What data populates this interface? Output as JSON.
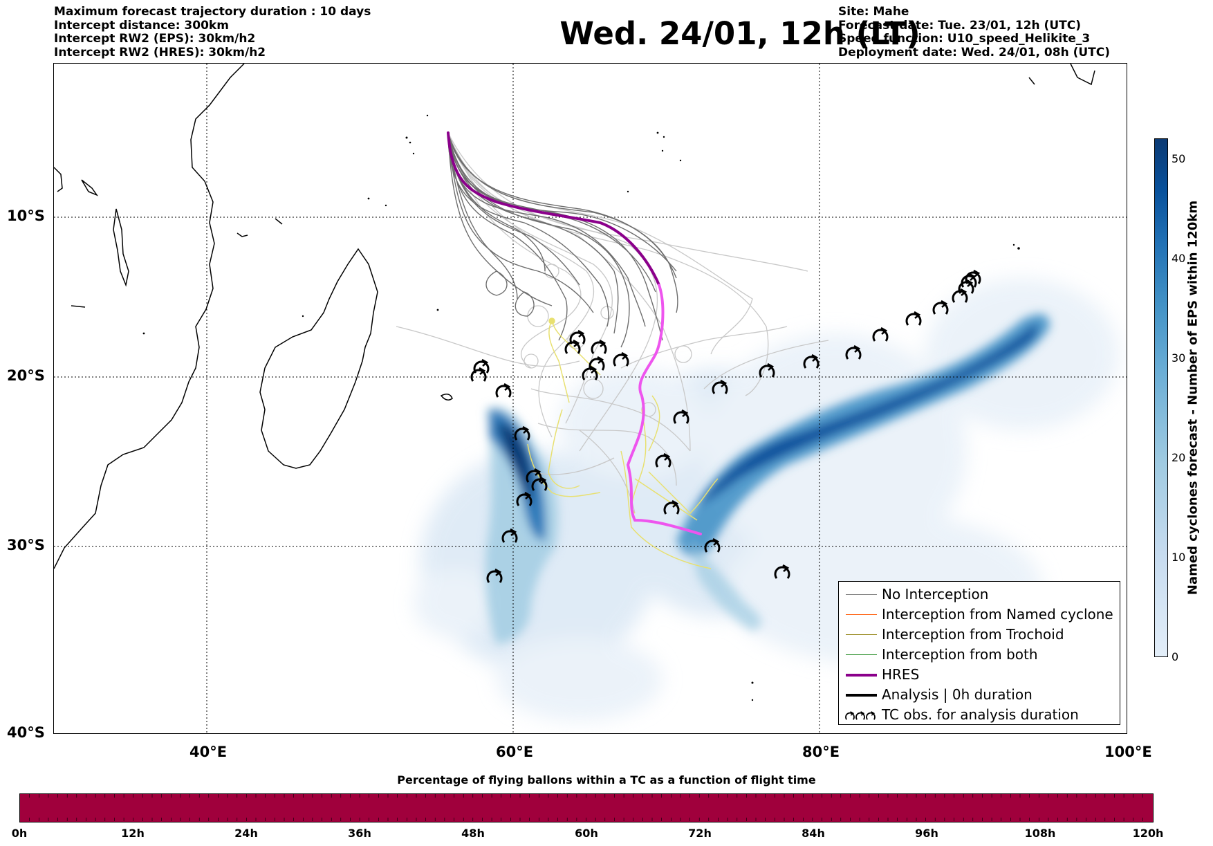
{
  "header": {
    "left_lines": [
      "Maximum forecast trajectory duration : 10 days",
      "Intercept distance: 300km",
      "Intercept RW2 (EPS):  30km/h2",
      "Intercept RW2 (HRES): 30km/h2"
    ],
    "title": "Wed. 24/01, 12h (LT)",
    "right_lines": [
      "Site: Mahe",
      "Forecast date: Tue. 23/01, 12h (UTC)",
      "Speed function: U10_speed_Helikite_3",
      "Deployment date: Wed. 24/01, 08h (UTC)"
    ]
  },
  "map": {
    "lat_labels": [
      "10°S",
      "20°S",
      "30°S",
      "40°S"
    ],
    "lon_labels": [
      "40°E",
      "60°E",
      "80°E",
      "100°E"
    ],
    "lon_range": [
      30,
      100
    ],
    "lat_range": [
      -40,
      -0.3
    ],
    "colors": {
      "eps_density": "#08519c",
      "no_interception": "#7a7a7a",
      "no_interception_light": "#c8c8c8",
      "named_cyclone": "#ff5a00",
      "trochoid": "#9a8a00",
      "both": "#1a8f1a",
      "hres": "#8b008b",
      "hres_highlight": "#ee55ee",
      "analysis": "#000000",
      "yellow_tracks": "#e6e070"
    }
  },
  "legend": {
    "items": [
      {
        "label": "No Interception",
        "color": "#808080",
        "width": 1
      },
      {
        "label": "Interception from Named cyclone",
        "color": "#ff5500",
        "width": 1
      },
      {
        "label": "Interception from Trochoid",
        "color": "#8a7a00",
        "width": 1
      },
      {
        "label": "Interception from both",
        "color": "#228b22",
        "width": 1
      },
      {
        "label": "HRES",
        "color": "#8b008b",
        "width": 4
      },
      {
        "label": "Analysis | 0h duration",
        "color": "#000000",
        "width": 4
      },
      {
        "label": "TC obs. for analysis duration",
        "icon": "tc-symbols"
      }
    ]
  },
  "colorbar": {
    "label": "Named cyclones forecast - Number of EPS within 120km",
    "ticks": [
      "0",
      "10",
      "20",
      "30",
      "40",
      "50"
    ],
    "range": [
      0,
      52
    ]
  },
  "time_bar": {
    "title": "Percentage of flying ballons within a TC as a function of flight time",
    "labels": [
      "0h",
      "12h",
      "24h",
      "36h",
      "48h",
      "60h",
      "72h",
      "84h",
      "96h",
      "108h",
      "120h"
    ],
    "color": "#a0003c"
  }
}
